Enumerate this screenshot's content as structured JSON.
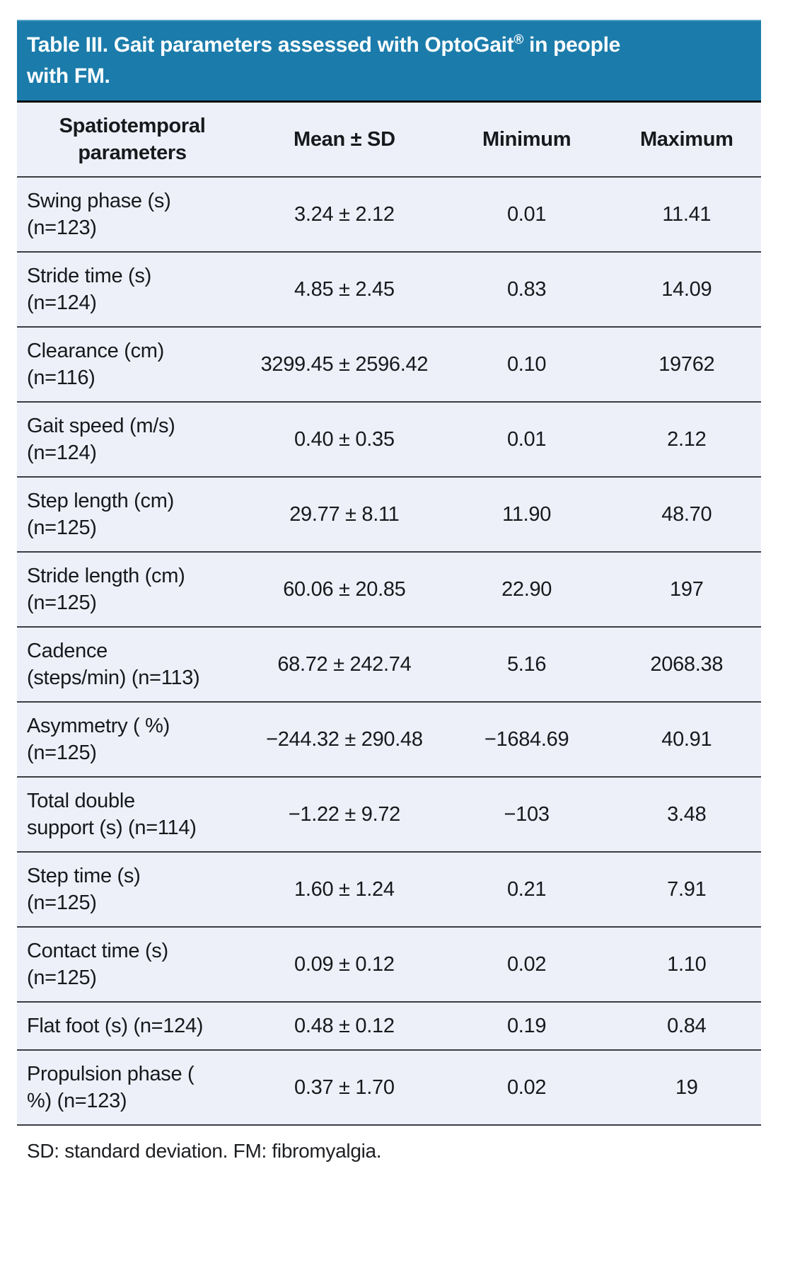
{
  "table": {
    "title": {
      "main": "Table III. Gait parameters assessed with OptoGait",
      "registered_mark": "®",
      "suffix": " in people with FM."
    },
    "columns": {
      "parameter": "Spatiotemporal parameters",
      "mean_sd": "Mean ± SD",
      "minimum": "Minimum",
      "maximum": "Maximum"
    },
    "rows": [
      {
        "parameter": "Swing phase (s) (n=123)",
        "mean_sd": "3.24 ± 2.12",
        "minimum": "0.01",
        "maximum": "11.41"
      },
      {
        "parameter": "Stride time (s) (n=124)",
        "mean_sd": "4.85 ± 2.45",
        "minimum": "0.83",
        "maximum": "14.09"
      },
      {
        "parameter": "Clearance (cm) (n=116)",
        "mean_sd": "3299.45 ± 2596.42",
        "minimum": "0.10",
        "maximum": "19762"
      },
      {
        "parameter": "Gait speed (m/s) (n=124)",
        "mean_sd": "0.40 ± 0.35",
        "minimum": "0.01",
        "maximum": "2.12"
      },
      {
        "parameter": "Step length (cm) (n=125)",
        "mean_sd": "29.77 ± 8.11",
        "minimum": "11.90",
        "maximum": "48.70"
      },
      {
        "parameter": "Stride length (cm) (n=125)",
        "mean_sd": "60.06 ± 20.85",
        "minimum": "22.90",
        "maximum": "197"
      },
      {
        "parameter": "Cadence (steps/min) (n=113)",
        "mean_sd": "68.72 ± 242.74",
        "minimum": "5.16",
        "maximum": "2068.38"
      },
      {
        "parameter": "Asymmetry ( %) (n=125)",
        "mean_sd": "−244.32 ± 290.48",
        "minimum": "−1684.69",
        "maximum": "40.91"
      },
      {
        "parameter": "Total double support (s) (n=114)",
        "mean_sd": "−1.22 ± 9.72",
        "minimum": "−103",
        "maximum": "3.48"
      },
      {
        "parameter": "Step time (s) (n=125)",
        "mean_sd": "1.60 ± 1.24",
        "minimum": "0.21",
        "maximum": "7.91"
      },
      {
        "parameter": "Contact time (s) (n=125)",
        "mean_sd": "0.09 ± 0.12",
        "minimum": "0.02",
        "maximum": "1.10"
      },
      {
        "parameter": "Flat foot (s) (n=124)",
        "mean_sd": "0.48 ± 0.12",
        "minimum": "0.19",
        "maximum": "0.84"
      },
      {
        "parameter": "Propulsion phase ( %) (n=123)",
        "mean_sd": "0.37 ± 1.70",
        "minimum": "0.02",
        "maximum": "19"
      }
    ],
    "footnote": "SD: standard deviation. FM: fibromyalgia."
  },
  "colors": {
    "header_bg": "#1b7cab",
    "row_bg": "#edf0f8",
    "separator": "#3a3e43",
    "title_text": "#ffffff",
    "body_text": "#17191c"
  }
}
